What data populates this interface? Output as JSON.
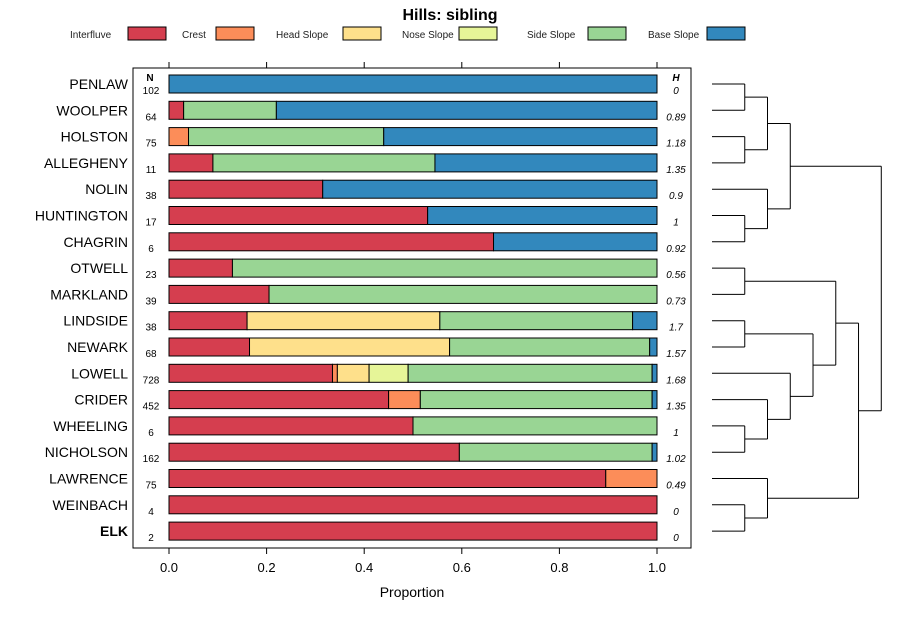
{
  "chart_data": {
    "type": "bar",
    "orientation": "horizontal",
    "stacked": true,
    "title": "Hills: sibling",
    "xlabel": "Proportion",
    "xlim": [
      0,
      1
    ],
    "x_ticks": [
      "0.0",
      "0.2",
      "0.4",
      "0.6",
      "0.8",
      "1.0"
    ],
    "n_header": "N",
    "h_header": "H",
    "legend_position": "top",
    "series": [
      {
        "name": "Interfluve",
        "color": "#d53e4f"
      },
      {
        "name": "Crest",
        "color": "#fc8d59"
      },
      {
        "name": "Head Slope",
        "color": "#fee08b"
      },
      {
        "name": "Nose Slope",
        "color": "#e6f598"
      },
      {
        "name": "Side Slope",
        "color": "#99d594"
      },
      {
        "name": "Base Slope",
        "color": "#3288bd"
      }
    ],
    "categories": [
      {
        "name": "PENLAW",
        "n": "102",
        "h": "0",
        "values": [
          0,
          0,
          0,
          0,
          0,
          1.0
        ]
      },
      {
        "name": "WOOLPER",
        "n": "64",
        "h": "0.89",
        "values": [
          0.03,
          0,
          0,
          0,
          0.19,
          0.78
        ]
      },
      {
        "name": "HOLSTON",
        "n": "75",
        "h": "1.18",
        "values": [
          0,
          0.04,
          0,
          0,
          0.4,
          0.56
        ]
      },
      {
        "name": "ALLEGHENY",
        "n": "11",
        "h": "1.35",
        "values": [
          0.09,
          0,
          0,
          0,
          0.455,
          0.455
        ]
      },
      {
        "name": "NOLIN",
        "n": "38",
        "h": "0.9",
        "values": [
          0.315,
          0,
          0,
          0,
          0,
          0.685
        ]
      },
      {
        "name": "HUNTINGTON",
        "n": "17",
        "h": "1",
        "values": [
          0.53,
          0,
          0,
          0,
          0,
          0.47
        ]
      },
      {
        "name": "CHAGRIN",
        "n": "6",
        "h": "0.92",
        "values": [
          0.665,
          0,
          0,
          0,
          0,
          0.335
        ]
      },
      {
        "name": "OTWELL",
        "n": "23",
        "h": "0.56",
        "values": [
          0.13,
          0,
          0,
          0,
          0.87,
          0
        ]
      },
      {
        "name": "MARKLAND",
        "n": "39",
        "h": "0.73",
        "values": [
          0.205,
          0,
          0,
          0,
          0.795,
          0
        ]
      },
      {
        "name": "LINDSIDE",
        "n": "38",
        "h": "1.7",
        "values": [
          0.16,
          0,
          0.395,
          0,
          0.395,
          0.05
        ]
      },
      {
        "name": "NEWARK",
        "n": "68",
        "h": "1.57",
        "values": [
          0.165,
          0,
          0.41,
          0,
          0.41,
          0.015
        ]
      },
      {
        "name": "LOWELL",
        "n": "728",
        "h": "1.68",
        "values": [
          0.335,
          0.01,
          0.065,
          0.08,
          0.5,
          0.01
        ]
      },
      {
        "name": "CRIDER",
        "n": "452",
        "h": "1.35",
        "values": [
          0.45,
          0.065,
          0,
          0,
          0.475,
          0.01
        ]
      },
      {
        "name": "WHEELING",
        "n": "6",
        "h": "1",
        "values": [
          0.5,
          0,
          0,
          0,
          0.5,
          0
        ]
      },
      {
        "name": "NICHOLSON",
        "n": "162",
        "h": "1.02",
        "values": [
          0.595,
          0,
          0,
          0,
          0.395,
          0.01
        ]
      },
      {
        "name": "LAWRENCE",
        "n": "75",
        "h": "0.49",
        "values": [
          0.895,
          0.105,
          0,
          0,
          0,
          0
        ]
      },
      {
        "name": "WEINBACH",
        "n": "4",
        "h": "0",
        "values": [
          1.0,
          0,
          0,
          0,
          0,
          0
        ]
      },
      {
        "name": "ELK",
        "n": "2",
        "h": "0",
        "values": [
          1.0,
          0,
          0,
          0,
          0,
          0
        ],
        "highlight": true
      }
    ],
    "dendrogram": {
      "label": "hierarchical clustering of series",
      "tree": [
        [
          [
            [
              [
                0,
                1
              ],
              [
                2,
                3
              ]
            ],
            [
              [
                4
              ],
              [
                5,
                6
              ]
            ]
          ],
          [
            [
              [
                7,
                8
              ],
              [
                [
                  9,
                  10
                ],
                [
                  11,
                  [
                    12,
                    [
                      13,
                      14
                    ]
                  ]
                ]
              ]
            ],
            [
              15,
              [
                16,
                17
              ]
            ]
          ]
        ]
      ]
    }
  }
}
